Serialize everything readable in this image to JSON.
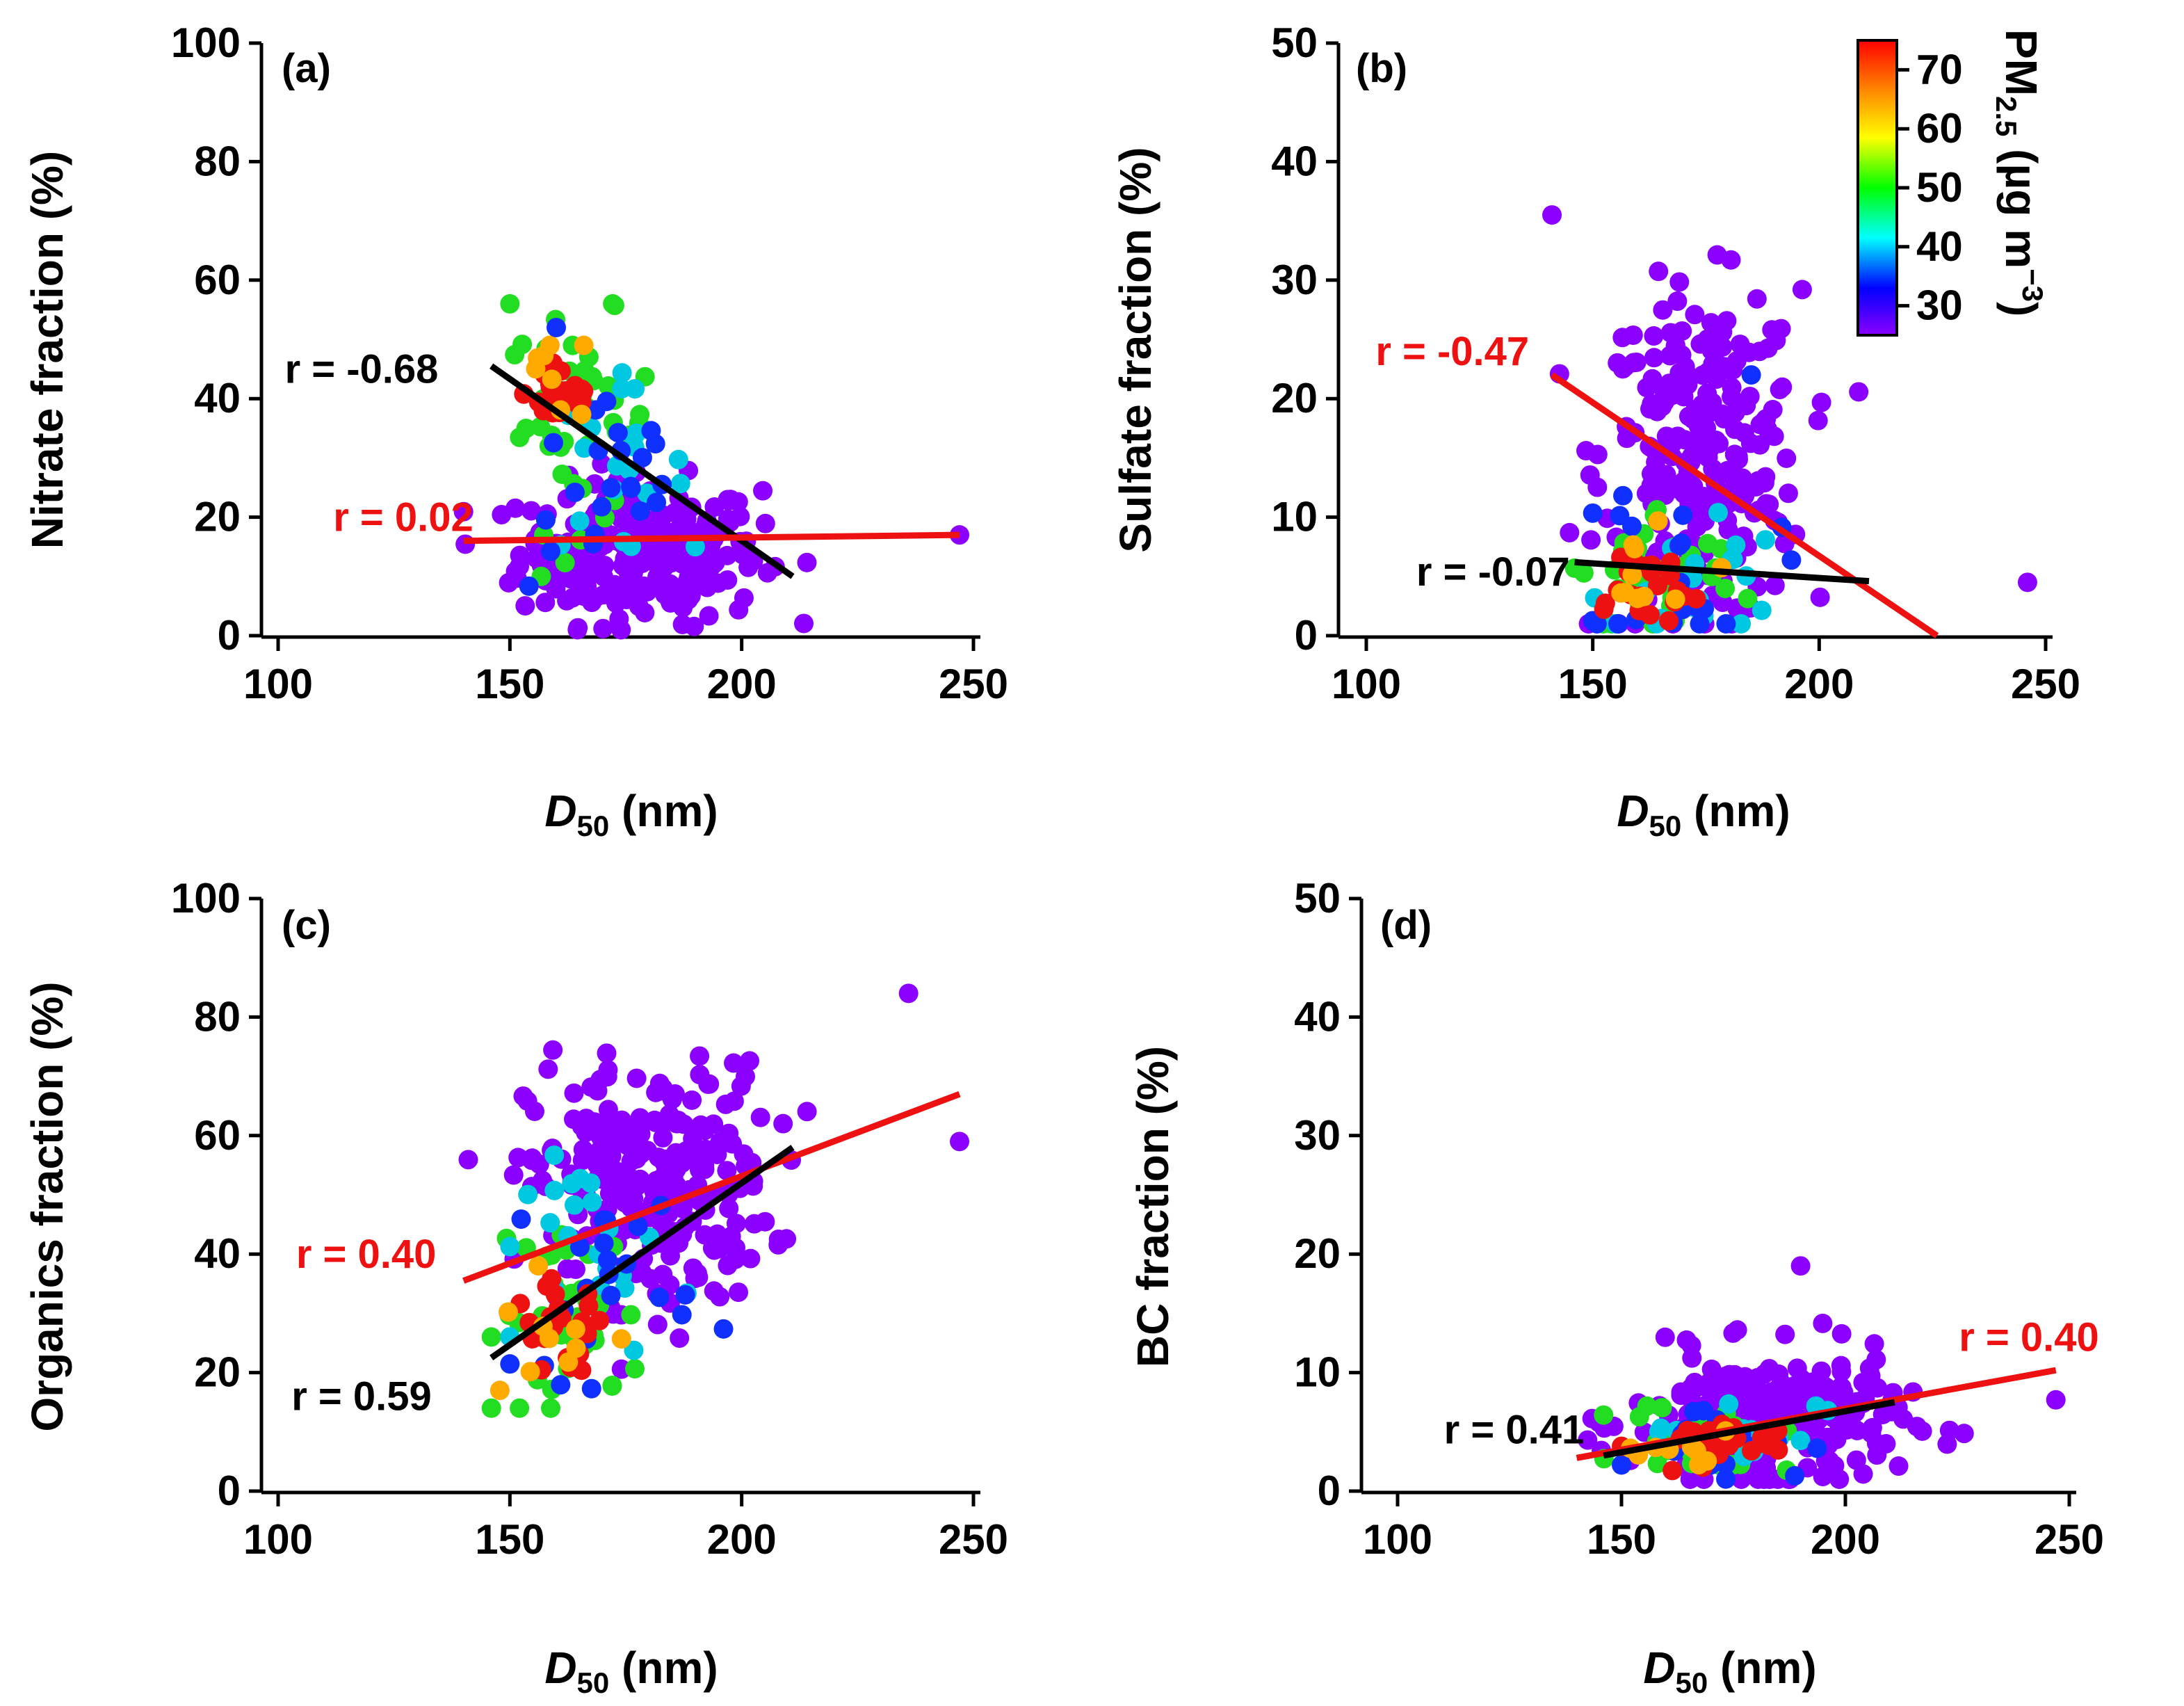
{
  "chart_data": [
    {
      "type": "scatter",
      "panel_label": "(a)",
      "ylabel": "Nitrate fraction (%)",
      "xlabel": {
        "italic": "D",
        "sub": "50",
        "rest": " (nm)"
      },
      "xlim": [
        100,
        250
      ],
      "ylim": [
        0,
        100
      ],
      "xticks": [
        100,
        150,
        200,
        250
      ],
      "yticks": [
        0,
        20,
        40,
        60,
        80,
        100
      ],
      "fits": [
        {
          "label": "r = -0.68",
          "color": "#000000",
          "x": [
            146,
            211
          ],
          "y": [
            45.5,
            10
          ],
          "label_at": [
            118,
            45
          ],
          "anchor": "middle"
        },
        {
          "label": "r = 0.02",
          "color": "#ee1111",
          "x": [
            140,
            247
          ],
          "y": [
            16,
            17
          ],
          "label_at": [
            127,
            20
          ],
          "anchor": "middle"
        }
      ],
      "clusters": [
        {
          "name": "low PM2.5 (purple)",
          "color": "#8b00ff",
          "cx": 178,
          "cy": 14,
          "sx": 13,
          "sy": 6,
          "n": 260,
          "xmin": 140,
          "xmax": 247,
          "ymin": 1,
          "ymax": 35
        },
        {
          "name": "mid PM2.5 (green/cyan)",
          "color": "#22dd22",
          "cx": 165,
          "cy": 36,
          "sx": 8,
          "sy": 9,
          "n": 45,
          "xmin": 146,
          "xmax": 200,
          "ymin": 10,
          "ymax": 56
        },
        {
          "name": "mid PM2.5 (cyan)",
          "color": "#00c8e0",
          "cx": 172,
          "cy": 28,
          "sx": 8,
          "sy": 7,
          "n": 20,
          "xmin": 150,
          "xmax": 212,
          "ymin": 15,
          "ymax": 45
        },
        {
          "name": "mid PM2.5 (blue)",
          "color": "#1030ff",
          "cx": 172,
          "cy": 25,
          "sx": 9,
          "sy": 9,
          "n": 22,
          "xmin": 150,
          "xmax": 200,
          "ymin": 8,
          "ymax": 52
        },
        {
          "name": "high PM2.5 (red)",
          "color": "#ee1111",
          "cx": 161,
          "cy": 41,
          "sx": 4,
          "sy": 3,
          "n": 26,
          "xmin": 153,
          "xmax": 170,
          "ymin": 34,
          "ymax": 46
        },
        {
          "name": "high PM2.5 (orange/yellow)",
          "color": "#ffaa00",
          "cx": 160,
          "cy": 44,
          "sx": 6,
          "sy": 4,
          "n": 8,
          "xmin": 146,
          "xmax": 190,
          "ymin": 30,
          "ymax": 49
        }
      ],
      "scalar_points": [
        {
          "x": 247,
          "y": 17,
          "color": "#8b00ff"
        },
        {
          "x": 150,
          "y": 56,
          "color": "#22dd22"
        },
        {
          "x": 160,
          "y": 52,
          "color": "#1030ff"
        }
      ]
    },
    {
      "type": "scatter",
      "panel_label": "(b)",
      "ylabel": "Sulfate fraction (%)",
      "xlabel": {
        "italic": "D",
        "sub": "50",
        "rest": " (nm)"
      },
      "xlim": [
        100,
        250
      ],
      "ylim": [
        0,
        50
      ],
      "xticks": [
        100,
        150,
        200,
        250
      ],
      "yticks": [
        0,
        10,
        20,
        30,
        40,
        50
      ],
      "fits": [
        {
          "label": "r = -0.47",
          "color": "#ee1111",
          "x": [
            141,
            226
          ],
          "y": [
            22,
            0
          ],
          "label_at": [
            119,
            24
          ],
          "anchor": "middle"
        },
        {
          "label": "r = -0.07",
          "color": "#000000",
          "x": [
            146,
            211
          ],
          "y": [
            6.2,
            4.6
          ],
          "label_at": [
            128,
            5.4
          ],
          "anchor": "middle"
        }
      ],
      "clusters": [
        {
          "name": "low PM2.5 (purple)",
          "color": "#8b00ff",
          "cx": 174,
          "cy": 15,
          "sx": 11,
          "sy": 7,
          "n": 260,
          "xmin": 140,
          "xmax": 247,
          "ymin": 1,
          "ymax": 35
        },
        {
          "name": "mid PM2.5 (green)",
          "color": "#22dd22",
          "cx": 165,
          "cy": 5,
          "sx": 9,
          "sy": 3,
          "n": 45,
          "xmin": 146,
          "xmax": 200,
          "ymin": 1,
          "ymax": 17
        },
        {
          "name": "mid PM2.5 (cyan)",
          "color": "#00c8e0",
          "cx": 172,
          "cy": 5,
          "sx": 10,
          "sy": 3,
          "n": 20,
          "xmin": 150,
          "xmax": 212,
          "ymin": 1,
          "ymax": 16
        },
        {
          "name": "mid PM2.5 (blue)",
          "color": "#1030ff",
          "cx": 170,
          "cy": 6,
          "sx": 10,
          "sy": 4,
          "n": 20,
          "xmin": 150,
          "xmax": 200,
          "ymin": 1,
          "ymax": 22
        },
        {
          "name": "high PM2.5 (red)",
          "color": "#ee1111",
          "cx": 160,
          "cy": 4,
          "sx": 7,
          "sy": 2,
          "n": 24,
          "xmin": 148,
          "xmax": 180,
          "ymin": 1,
          "ymax": 10
        },
        {
          "name": "high PM2.5 (orange/yellow)",
          "color": "#ffaa00",
          "cx": 158,
          "cy": 5,
          "sx": 10,
          "sy": 2,
          "n": 10,
          "xmin": 146,
          "xmax": 195,
          "ymin": 2,
          "ymax": 10
        }
      ],
      "scalar_points": [
        {
          "x": 141,
          "y": 35.5,
          "color": "#8b00ff"
        },
        {
          "x": 246,
          "y": 4.5,
          "color": "#8b00ff"
        },
        {
          "x": 185,
          "y": 22,
          "color": "#1030ff"
        }
      ]
    },
    {
      "type": "scatter",
      "panel_label": "(c)",
      "ylabel": "Organics fraction (%)",
      "xlabel": {
        "italic": "D",
        "sub": "50",
        "rest": " (nm)"
      },
      "xlim": [
        100,
        250
      ],
      "ylim": [
        0,
        100
      ],
      "xticks": [
        100,
        150,
        200,
        250
      ],
      "yticks": [
        0,
        20,
        40,
        60,
        80,
        100
      ],
      "fits": [
        {
          "label": "r = 0.40",
          "color": "#ee1111",
          "x": [
            140,
            247
          ],
          "y": [
            35.5,
            67
          ],
          "label_at": [
            119,
            40
          ],
          "anchor": "middle"
        },
        {
          "label": "r = 0.59",
          "color": "#000000",
          "x": [
            146,
            211
          ],
          "y": [
            22.5,
            58
          ],
          "label_at": [
            118,
            16
          ],
          "anchor": "middle"
        }
      ],
      "clusters": [
        {
          "name": "low PM2.5 (purple)",
          "color": "#8b00ff",
          "cx": 180,
          "cy": 52,
          "sx": 13,
          "sy": 10,
          "n": 260,
          "xmin": 140,
          "xmax": 247,
          "ymin": 20,
          "ymax": 85
        },
        {
          "name": "mid PM2.5 (green)",
          "color": "#22dd22",
          "cx": 163,
          "cy": 30,
          "sx": 8,
          "sy": 8,
          "n": 40,
          "xmin": 146,
          "xmax": 200,
          "ymin": 14,
          "ymax": 55
        },
        {
          "name": "mid PM2.5 (cyan)",
          "color": "#00c8e0",
          "cx": 172,
          "cy": 40,
          "sx": 9,
          "sy": 8,
          "n": 22,
          "xmin": 150,
          "xmax": 212,
          "ymin": 20,
          "ymax": 62
        },
        {
          "name": "mid PM2.5 (blue)",
          "color": "#1030ff",
          "cx": 170,
          "cy": 37,
          "sx": 10,
          "sy": 9,
          "n": 22,
          "xmin": 150,
          "xmax": 200,
          "ymin": 17,
          "ymax": 60
        },
        {
          "name": "high PM2.5 (red)",
          "color": "#ee1111",
          "cx": 161,
          "cy": 27,
          "sx": 5,
          "sy": 4,
          "n": 24,
          "xmin": 150,
          "xmax": 175,
          "ymin": 18,
          "ymax": 38
        },
        {
          "name": "high PM2.5 (orange/yellow)",
          "color": "#ffaa00",
          "cx": 158,
          "cy": 26,
          "sx": 8,
          "sy": 5,
          "n": 10,
          "xmin": 146,
          "xmax": 195,
          "ymin": 17,
          "ymax": 40
        }
      ],
      "scalar_points": [
        {
          "x": 236,
          "y": 84,
          "color": "#8b00ff"
        },
        {
          "x": 247,
          "y": 59,
          "color": "#8b00ff"
        },
        {
          "x": 146,
          "y": 14,
          "color": "#22dd22"
        }
      ]
    },
    {
      "type": "scatter",
      "panel_label": "(d)",
      "ylabel": "BC fraction (%)",
      "xlabel": {
        "italic": "D",
        "sub": "50",
        "rest": " (nm)"
      },
      "xlim": [
        100,
        250
      ],
      "ylim": [
        0,
        50
      ],
      "xticks": [
        100,
        150,
        200,
        250
      ],
      "yticks": [
        0,
        10,
        20,
        30,
        40,
        50
      ],
      "fits": [
        {
          "label": "r = 0.40",
          "color": "#ee1111",
          "x": [
            140,
            247
          ],
          "y": [
            2.8,
            10.2
          ],
          "label_at": [
            241,
            13
          ],
          "anchor": "middle"
        },
        {
          "label": "r = 0.41",
          "color": "#000000",
          "x": [
            146,
            211
          ],
          "y": [
            3,
            7.5
          ],
          "label_at": [
            126,
            5.2
          ],
          "anchor": "middle"
        }
      ],
      "clusters": [
        {
          "name": "low PM2.5 (purple)",
          "color": "#8b00ff",
          "cx": 182,
          "cy": 6,
          "sx": 15,
          "sy": 2.8,
          "n": 260,
          "xmin": 140,
          "xmax": 247,
          "ymin": 1,
          "ymax": 19
        },
        {
          "name": "mid PM2.5 (green)",
          "color": "#22dd22",
          "cx": 170,
          "cy": 4.5,
          "sx": 9,
          "sy": 1.5,
          "n": 40,
          "xmin": 146,
          "xmax": 200,
          "ymin": 1,
          "ymax": 10
        },
        {
          "name": "mid PM2.5 (cyan)",
          "color": "#00c8e0",
          "cx": 175,
          "cy": 5,
          "sx": 10,
          "sy": 1.5,
          "n": 22,
          "xmin": 150,
          "xmax": 212,
          "ymin": 1,
          "ymax": 10
        },
        {
          "name": "mid PM2.5 (blue)",
          "color": "#1030ff",
          "cx": 172,
          "cy": 4.5,
          "sx": 10,
          "sy": 1.5,
          "n": 22,
          "xmin": 150,
          "xmax": 200,
          "ymin": 0.5,
          "ymax": 9
        },
        {
          "name": "high PM2.5 (red)",
          "color": "#ee1111",
          "cx": 168,
          "cy": 3.8,
          "sx": 8,
          "sy": 1.2,
          "n": 24,
          "xmin": 150,
          "xmax": 185,
          "ymin": 1,
          "ymax": 7
        },
        {
          "name": "high PM2.5 (orange/yellow)",
          "color": "#ffaa00",
          "cx": 162,
          "cy": 3.5,
          "sx": 10,
          "sy": 1.2,
          "n": 10,
          "xmin": 146,
          "xmax": 195,
          "ymin": 1,
          "ymax": 6
        }
      ],
      "scalar_points": [
        {
          "x": 190,
          "y": 19,
          "color": "#8b00ff"
        },
        {
          "x": 247,
          "y": 7.7,
          "color": "#8b00ff"
        }
      ]
    }
  ],
  "colorbar": {
    "title_main": "PM",
    "title_sub": "2.5",
    "title_rest": " (µg m",
    "title_sup": "−3",
    "title_close": ")",
    "range": [
      25,
      75
    ],
    "ticks": [
      30,
      40,
      50,
      60,
      70
    ],
    "stops": [
      "#8b00ff",
      "#0000ff",
      "#00ffff",
      "#00ff00",
      "#ffff00",
      "#ff8800",
      "#ff0000"
    ]
  }
}
